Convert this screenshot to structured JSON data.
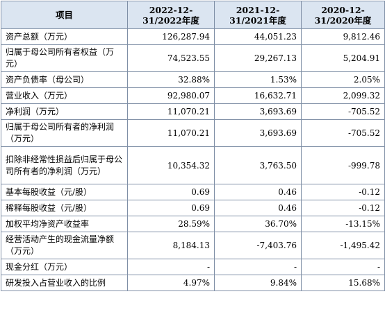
{
  "table": {
    "headers": [
      "项目",
      "2022-12-31/2022年度",
      "2021-12-31/2021年度",
      "2020-12-31/2020年度"
    ],
    "rows": [
      {
        "label": "资产总额（万元）",
        "values": [
          "126,287.94",
          "44,051.23",
          "9,812.46"
        ]
      },
      {
        "label": "归属于母公司所有者权益（万元）",
        "values": [
          "74,523.55",
          "29,267.13",
          "5,204.91"
        ]
      },
      {
        "label": "资产负债率（母公司）",
        "values": [
          "32.88%",
          "1.53%",
          "2.05%"
        ]
      },
      {
        "label": "营业收入（万元）",
        "values": [
          "92,980.07",
          "16,632.71",
          "2,099.32"
        ]
      },
      {
        "label": "净利润（万元）",
        "values": [
          "11,070.21",
          "3,693.69",
          "-705.52"
        ]
      },
      {
        "label": "归属于母公司所有者的净利润（万元）",
        "values": [
          "11,070.21",
          "3,693.69",
          "-705.52"
        ]
      },
      {
        "label": "扣除非经常性损益后归属于母公司所有者的净利润（万元）",
        "values": [
          "10,354.32",
          "3,763.50",
          "-999.78"
        ]
      },
      {
        "label": "基本每股收益（元/股）",
        "values": [
          "0.69",
          "0.46",
          "-0.12"
        ]
      },
      {
        "label": "稀释每股收益（元/股）",
        "values": [
          "0.69",
          "0.46",
          "-0.12"
        ]
      },
      {
        "label": "加权平均净资产收益率",
        "values": [
          "28.59%",
          "36.70%",
          "-13.15%"
        ]
      },
      {
        "label": "经营活动产生的现金流量净额（万元）",
        "values": [
          "8,184.13",
          "-7,403.76",
          "-1,495.42"
        ]
      },
      {
        "label": "现金分红（万元）",
        "values": [
          "-",
          "-",
          "-"
        ]
      },
      {
        "label": "研发投入占营业收入的比例",
        "values": [
          "4.97%",
          "9.84%",
          "15.68%"
        ]
      }
    ]
  }
}
